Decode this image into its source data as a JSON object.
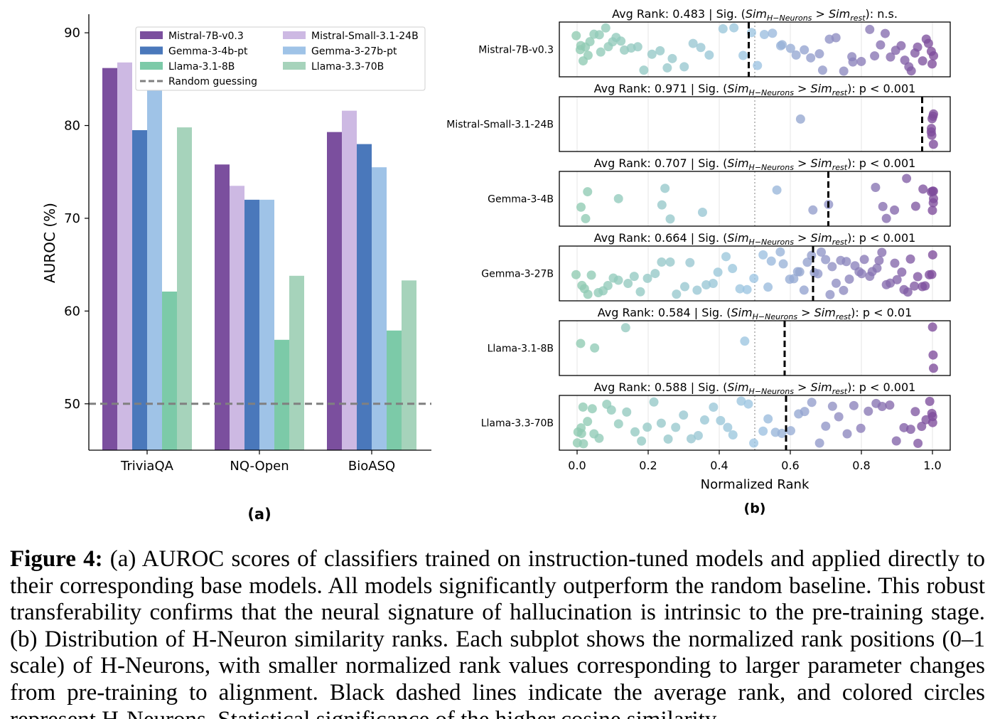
{
  "panel_a_label": "(a)",
  "panel_b_label": "(b)",
  "caption": {
    "label": "Figure 4:",
    "text": "(a) AUROC scores of classifiers trained on instruction-tuned models and applied directly to their corresponding base models. All models significantly outperform the random baseline. This robust transferability confirms that the neural signature of hallucination is intrinsic to the pre-training stage.  (b) Distribution of H-Neuron similarity ranks.  Each subplot shows the normalized rank positions (0–1 scale) of H-Neurons, with smaller normalized rank values corresponding to larger parameter changes from pre-training to alignment. Black dashed lines indicate the average rank, and colored circles represent H-Neurons. Statistical significance of the higher cosine similarity"
  },
  "chart_data": [
    {
      "type": "bar",
      "title": "",
      "xlabel": "",
      "ylabel": "AUROC (%)",
      "ylim": [
        45,
        92
      ],
      "yticks": [
        50,
        60,
        70,
        80,
        90
      ],
      "categories": [
        "TriviaQA",
        "NQ-Open",
        "BioASQ"
      ],
      "series": [
        {
          "name": "Mistral-7B-v0.3",
          "color": "#7b4f9e",
          "values": [
            86.2,
            75.8,
            79.3
          ]
        },
        {
          "name": "Mistral-Small-3.1-24B",
          "color": "#cdb9e3",
          "values": [
            86.8,
            73.5,
            81.6
          ]
        },
        {
          "name": "Gemma-3-4b-pt",
          "color": "#4a78bb",
          "values": [
            79.5,
            72.0,
            78.0
          ]
        },
        {
          "name": "Gemma-3-27b-pt",
          "color": "#9fc3e7",
          "values": [
            83.8,
            72.0,
            75.5
          ]
        },
        {
          "name": "Llama-3.1-8B",
          "color": "#7ccaa8",
          "values": [
            62.1,
            56.9,
            57.9
          ]
        },
        {
          "name": "Llama-3.3-70B",
          "color": "#a6d3bb",
          "values": [
            79.8,
            63.8,
            63.3
          ]
        }
      ],
      "reference_line": {
        "name": "Random guessing",
        "value": 50,
        "style": "dashed",
        "color": "#808080"
      },
      "legend_position": "top-right",
      "grid": false
    },
    {
      "type": "scatter",
      "title": "",
      "xlabel": "Normalized Rank",
      "xlim": [
        -0.05,
        1.05
      ],
      "xticks": [
        "0.0",
        "0.2",
        "0.4",
        "0.6",
        "0.8",
        "1.0"
      ],
      "reference_line": {
        "value": 0.5,
        "style": "dotted",
        "color": "#aaaaaa"
      },
      "grid": true,
      "colormap": [
        "#8fcbb1",
        "#9dc5e3",
        "#7d4c9b"
      ],
      "subplots": [
        {
          "name": "Mistral-7B-v0.3",
          "avg_rank": 0.483,
          "avg_rank_label": "Avg Rank: 0.483",
          "significance": "n.s.",
          "points": [
            0.0,
            0.01,
            0.01,
            0.02,
            0.02,
            0.03,
            0.04,
            0.05,
            0.06,
            0.07,
            0.08,
            0.09,
            0.1,
            0.11,
            0.12,
            0.13,
            0.15,
            0.17,
            0.19,
            0.21,
            0.23,
            0.25,
            0.27,
            0.3,
            0.33,
            0.35,
            0.37,
            0.41,
            0.44,
            0.47,
            0.49,
            0.51,
            0.53,
            0.55,
            0.57,
            0.58,
            0.6,
            0.62,
            0.64,
            0.66,
            0.68,
            0.69,
            0.71,
            0.73,
            0.75,
            0.77,
            0.78,
            0.8,
            0.82,
            0.84,
            0.85,
            0.87,
            0.88,
            0.9,
            0.91,
            0.92,
            0.93,
            0.94,
            0.95,
            0.96,
            0.97,
            0.98,
            0.99,
            1.0,
            1.0,
            1.0
          ]
        },
        {
          "name": "Mistral-Small-3.1-24B",
          "avg_rank": 0.971,
          "avg_rank_label": "Avg Rank: 0.971",
          "significance": "p < 0.001",
          "points": [
            0.63,
            1.0,
            1.0,
            1.0,
            1.0,
            1.0,
            1.0,
            1.0
          ]
        },
        {
          "name": "Gemma-3-4B",
          "avg_rank": 0.707,
          "avg_rank_label": "Avg Rank: 0.707",
          "significance": "p < 0.001",
          "points": [
            0.01,
            0.02,
            0.03,
            0.12,
            0.24,
            0.25,
            0.26,
            0.35,
            0.56,
            0.66,
            0.71,
            0.84,
            0.86,
            0.87,
            0.89,
            0.93,
            0.95,
            0.97,
            1.0,
            1.0,
            1.0,
            1.0,
            1.0,
            1.0
          ]
        },
        {
          "name": "Gemma-3-27B",
          "avg_rank": 0.664,
          "avg_rank_label": "Avg Rank: 0.664",
          "significance": "p < 0.001",
          "points": [
            0.0,
            0.01,
            0.02,
            0.03,
            0.04,
            0.06,
            0.07,
            0.09,
            0.1,
            0.12,
            0.14,
            0.16,
            0.18,
            0.2,
            0.22,
            0.24,
            0.26,
            0.28,
            0.3,
            0.32,
            0.34,
            0.36,
            0.38,
            0.4,
            0.42,
            0.44,
            0.46,
            0.48,
            0.5,
            0.52,
            0.54,
            0.55,
            0.57,
            0.58,
            0.6,
            0.61,
            0.62,
            0.63,
            0.64,
            0.65,
            0.66,
            0.67,
            0.68,
            0.69,
            0.7,
            0.71,
            0.72,
            0.73,
            0.74,
            0.75,
            0.76,
            0.77,
            0.78,
            0.79,
            0.8,
            0.81,
            0.82,
            0.83,
            0.84,
            0.85,
            0.86,
            0.87,
            0.88,
            0.89,
            0.9,
            0.91,
            0.92,
            0.93,
            0.94,
            0.95,
            0.96,
            0.97,
            0.98,
            0.99,
            1.0,
            1.0
          ]
        },
        {
          "name": "Llama-3.1-8B",
          "avg_rank": 0.584,
          "avg_rank_label": "Avg Rank: 0.584",
          "significance": "p < 0.01",
          "points": [
            0.01,
            0.05,
            0.14,
            0.47,
            1.0,
            1.0,
            1.0
          ]
        },
        {
          "name": "Llama-3.3-70B",
          "avg_rank": 0.588,
          "avg_rank_label": "Avg Rank: 0.588",
          "significance": "p < 0.001",
          "points": [
            0.0,
            0.0,
            0.01,
            0.01,
            0.02,
            0.02,
            0.03,
            0.04,
            0.05,
            0.06,
            0.08,
            0.1,
            0.12,
            0.14,
            0.16,
            0.18,
            0.2,
            0.22,
            0.24,
            0.26,
            0.28,
            0.3,
            0.32,
            0.34,
            0.36,
            0.38,
            0.4,
            0.42,
            0.44,
            0.46,
            0.48,
            0.5,
            0.52,
            0.54,
            0.56,
            0.58,
            0.6,
            0.62,
            0.64,
            0.66,
            0.68,
            0.7,
            0.72,
            0.74,
            0.76,
            0.78,
            0.8,
            0.82,
            0.84,
            0.86,
            0.88,
            0.9,
            0.92,
            0.94,
            0.95,
            0.96,
            0.97,
            0.98,
            0.99,
            1.0,
            1.0,
            1.0
          ]
        }
      ]
    }
  ]
}
